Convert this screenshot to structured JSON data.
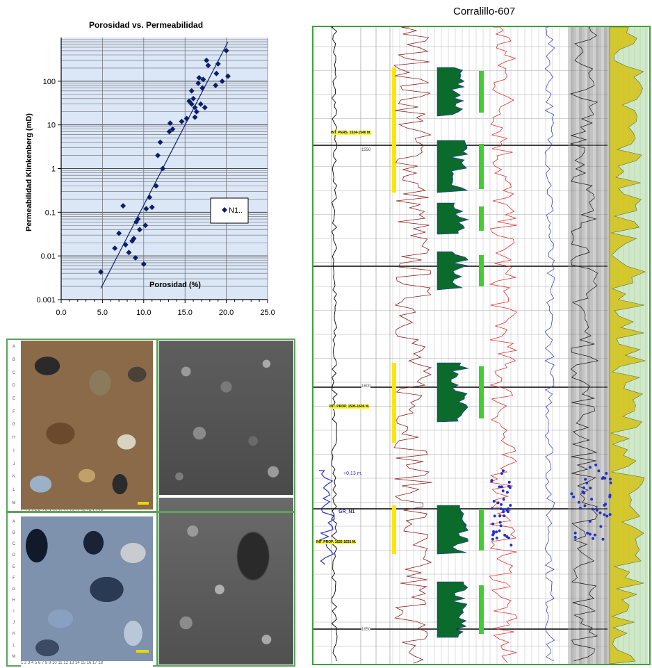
{
  "chart_data": {
    "type": "scatter",
    "title": "Porosidad vs. Permeabilidad",
    "xlabel": "Porosidad (%)",
    "ylabel": "Permeabilidad Klinkenberg  (mD)",
    "xlim": [
      0,
      25
    ],
    "ylim": [
      0.001,
      1000
    ],
    "yscale": "log",
    "grid": true,
    "legend_position": "right",
    "x_ticks": [
      "0.0",
      "5.0",
      "10.0",
      "15.0",
      "20.0",
      "25.0"
    ],
    "y_ticks": [
      "0.001",
      "0.01",
      "0.1",
      "1",
      "10",
      "100"
    ],
    "series": [
      {
        "name": "N1..",
        "marker": "diamond",
        "color": "#0d1f6b",
        "points": [
          [
            4.8,
            0.0043
          ],
          [
            6.5,
            0.015
          ],
          [
            7.0,
            0.033
          ],
          [
            7.5,
            0.14
          ],
          [
            7.8,
            0.018
          ],
          [
            8.2,
            0.012
          ],
          [
            8.6,
            0.022
          ],
          [
            8.8,
            0.025
          ],
          [
            9.0,
            0.009
          ],
          [
            9.1,
            0.06
          ],
          [
            9.3,
            0.07
          ],
          [
            9.5,
            0.04
          ],
          [
            10.0,
            0.0065
          ],
          [
            10.2,
            0.05
          ],
          [
            10.3,
            0.12
          ],
          [
            10.7,
            0.22
          ],
          [
            11.0,
            0.13
          ],
          [
            11.5,
            0.4
          ],
          [
            11.7,
            2.0
          ],
          [
            12.0,
            4.0
          ],
          [
            12.3,
            1.0
          ],
          [
            13.1,
            7
          ],
          [
            13.2,
            11
          ],
          [
            13.5,
            8
          ],
          [
            14.6,
            12
          ],
          [
            15.2,
            14
          ],
          [
            15.5,
            35
          ],
          [
            15.8,
            30
          ],
          [
            15.8,
            60
          ],
          [
            16.0,
            40
          ],
          [
            16.2,
            25
          ],
          [
            16.2,
            15
          ],
          [
            16.4,
            20
          ],
          [
            16.6,
            90
          ],
          [
            16.7,
            120
          ],
          [
            16.9,
            30
          ],
          [
            17.1,
            70
          ],
          [
            17.2,
            110
          ],
          [
            17.4,
            25
          ],
          [
            17.6,
            300
          ],
          [
            17.8,
            230
          ],
          [
            18.7,
            80
          ],
          [
            18.8,
            150
          ],
          [
            19.0,
            250
          ],
          [
            19.5,
            100
          ],
          [
            20.0,
            500
          ],
          [
            20.2,
            130
          ]
        ]
      }
    ],
    "trendline": {
      "x": [
        4.8,
        20.2
      ],
      "y": [
        0.0018,
        800
      ]
    }
  },
  "well_log": {
    "title": "Corralillo-607",
    "depth_labels": [
      "1550",
      "1600",
      "1650"
    ],
    "intervals": [
      "INT. PERS. 1534-1540 M.",
      "INT. PROP. 1595-1606 M.",
      "INT. PROP. 1626-1631 M."
    ],
    "annotations": [
      "+0.13 m.",
      "GR_N1"
    ]
  },
  "photos": {
    "ruler_letters": [
      "A",
      "B",
      "C",
      "D",
      "E",
      "F",
      "G",
      "H",
      "I",
      "J",
      "K",
      "L",
      "M"
    ],
    "ruler_numbers": "1 2 3 4 5 6 7 8 9 10 11 12 13 14 15 16 17 18"
  }
}
